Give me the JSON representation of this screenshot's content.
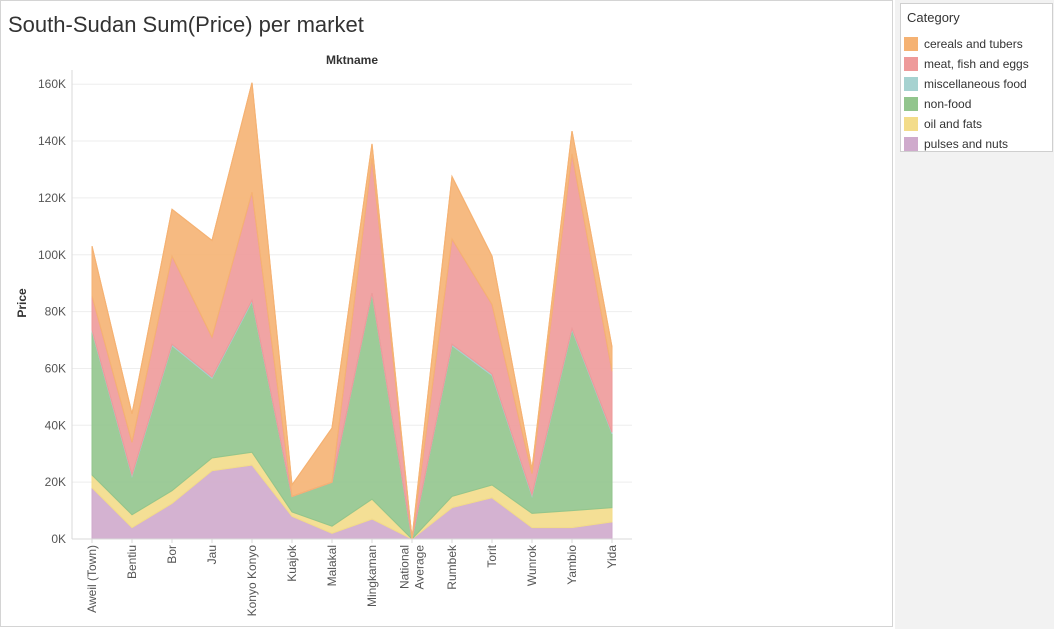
{
  "title": "South-Sudan Sum(Price) per market",
  "legend": {
    "title": "Category",
    "items": [
      {
        "label": "cereals and tubers",
        "color": "#f5b273"
      },
      {
        "label": "meat, fish and eggs",
        "color": "#ee9a9a"
      },
      {
        "label": "miscellaneous food",
        "color": "#a6d2d0"
      },
      {
        "label": "non-food",
        "color": "#92c58d"
      },
      {
        "label": "oil and fats",
        "color": "#f3dc8a"
      },
      {
        "label": "pulses and nuts",
        "color": "#cfaacc"
      }
    ]
  },
  "chart_data": {
    "type": "area",
    "stacked": true,
    "title": "South-Sudan Sum(Price) per market",
    "column_header": "Mktname",
    "ylabel": "Price",
    "xlabel": "",
    "ylim": [
      0,
      165000
    ],
    "yticks": [
      0,
      20000,
      40000,
      60000,
      80000,
      100000,
      120000,
      140000,
      160000
    ],
    "ytick_labels": [
      "0K",
      "20K",
      "40K",
      "60K",
      "80K",
      "100K",
      "120K",
      "140K",
      "160K"
    ],
    "grid": true,
    "legend_position": "right",
    "categories": [
      "Aweil (Town)",
      "Bentiu",
      "Bor",
      "Jau",
      "Konyo Konyo",
      "Kuajok",
      "Malakal",
      "Mingkaman",
      "National Average",
      "Rumbek",
      "Torit",
      "Wunrok",
      "Yambio",
      "Yida"
    ],
    "category_label_lines": [
      [
        "Aweil (Town)"
      ],
      [
        "Bentiu"
      ],
      [
        "Bor"
      ],
      [
        "Jau"
      ],
      [
        "Konyo Konyo"
      ],
      [
        "Kuajok"
      ],
      [
        "Malakal"
      ],
      [
        "Mingkaman"
      ],
      [
        "National",
        "Average"
      ],
      [
        "Rumbek"
      ],
      [
        "Torit"
      ],
      [
        "Wunrok"
      ],
      [
        "Yambio"
      ],
      [
        "Yida"
      ]
    ],
    "series": [
      {
        "name": "pulses and nuts",
        "color": "#cfaacc",
        "values": [
          18000,
          4000,
          12500,
          24000,
          26000,
          8000,
          2000,
          7000,
          0,
          11000,
          14500,
          4000,
          4000,
          6000
        ]
      },
      {
        "name": "oil and fats",
        "color": "#f3dc8a",
        "values": [
          4500,
          4500,
          4500,
          4500,
          4500,
          1500,
          2500,
          7000,
          0,
          4000,
          4500,
          5000,
          6000,
          5000
        ]
      },
      {
        "name": "non-food",
        "color": "#92c58d",
        "values": [
          50500,
          13500,
          51000,
          28000,
          53000,
          5500,
          15500,
          72500,
          0,
          53000,
          38500,
          6000,
          63500,
          26000
        ]
      },
      {
        "name": "miscellaneous food",
        "color": "#a6d2d0",
        "values": [
          500,
          500,
          500,
          500,
          500,
          0,
          0,
          0,
          0,
          500,
          500,
          500,
          500,
          500
        ]
      },
      {
        "name": "meat, fish and eggs",
        "color": "#ee9a9a",
        "values": [
          12000,
          11500,
          31000,
          14000,
          38000,
          0,
          0,
          47500,
          0,
          37000,
          24500,
          7500,
          61500,
          21500
        ]
      },
      {
        "name": "cereals and tubers",
        "color": "#f5b273",
        "values": [
          17500,
          10000,
          16500,
          34000,
          38500,
          4000,
          19000,
          5000,
          0,
          22000,
          17000,
          1500,
          8000,
          8500
        ]
      }
    ]
  }
}
